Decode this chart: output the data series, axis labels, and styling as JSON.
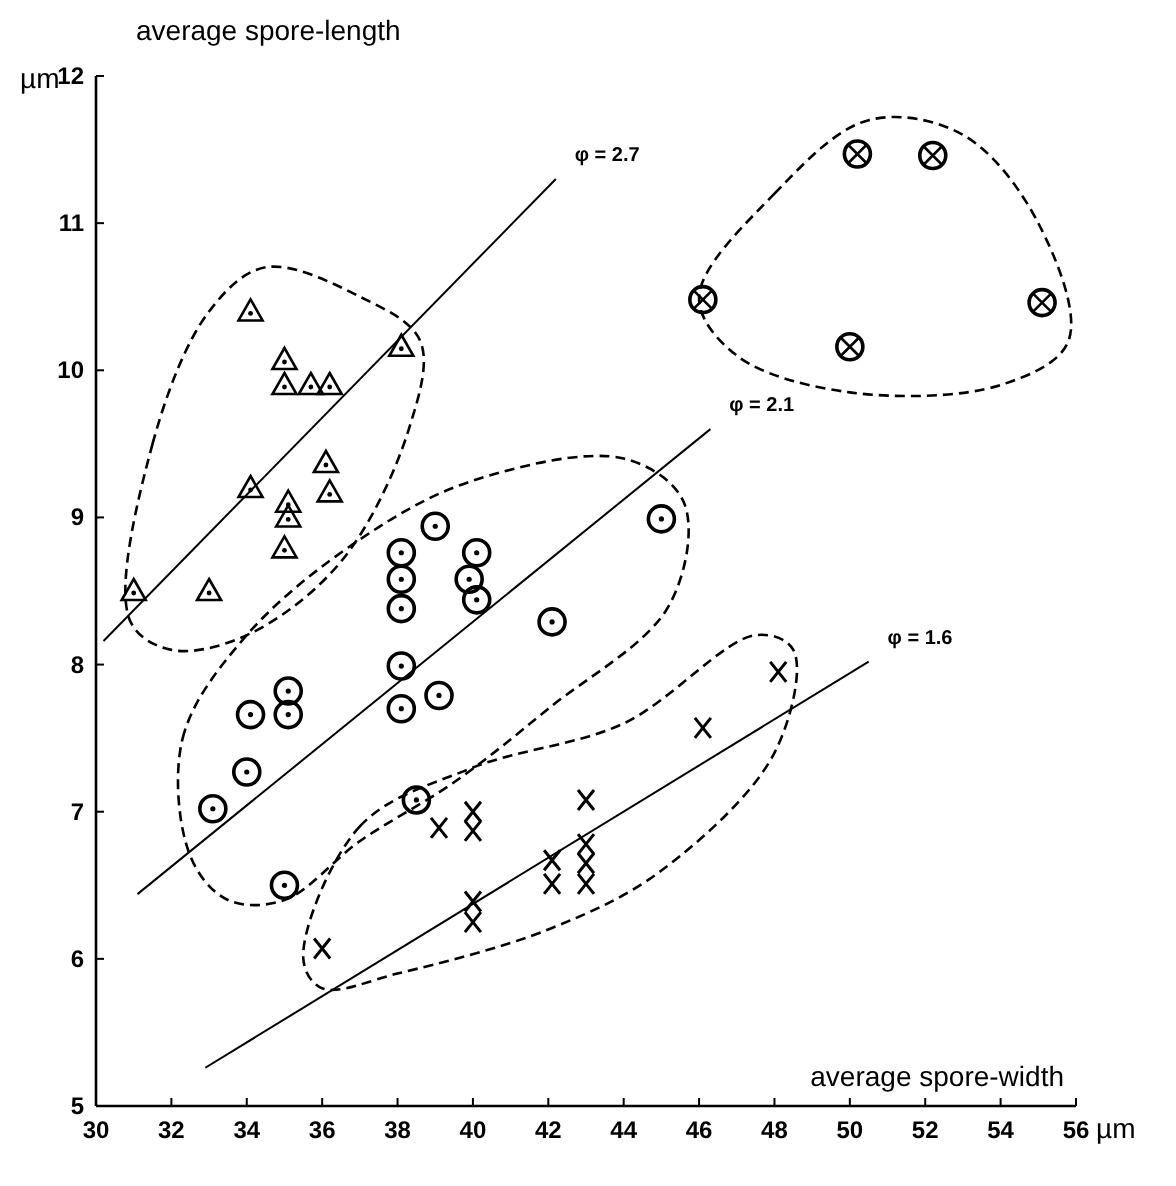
{
  "chart_data": {
    "type": "scatter",
    "xlabel": "average spore-width",
    "ylabel": "average spore-length",
    "xlim": [
      30,
      56
    ],
    "ylim": [
      5,
      12
    ],
    "xticks": [
      30,
      32,
      34,
      36,
      38,
      40,
      42,
      44,
      46,
      48,
      50,
      52,
      54,
      56
    ],
    "yticks": [
      5,
      6,
      7,
      8,
      9,
      10,
      11,
      12
    ],
    "series": [
      {
        "color": "#000000",
        "marker": "triangle",
        "x": [
          31,
          33,
          34.1,
          34.1,
          35,
          35,
          35.7,
          36.2,
          36.1,
          36.2,
          35.1,
          35.1,
          35,
          38.1
        ],
        "values": [
          8.5,
          8.5,
          10.4,
          9.2,
          10.07,
          9.9,
          9.9,
          9.9,
          9.37,
          9.17,
          9.1,
          9.0,
          8.79,
          10.16
        ]
      },
      {
        "color": "#000000",
        "marker": "circle",
        "x": [
          38.1,
          38.1,
          38.1,
          39,
          40.1,
          39.9,
          40.1,
          42.1,
          45,
          38.1,
          38.1,
          39.1,
          35.1,
          35.1,
          34.1,
          34,
          33.1,
          38.5,
          35
        ],
        "values": [
          8.76,
          8.58,
          8.38,
          8.94,
          8.76,
          8.58,
          8.44,
          8.29,
          8.99,
          7.99,
          7.7,
          7.79,
          7.82,
          7.66,
          7.66,
          7.27,
          7.02,
          7.08,
          6.5
        ]
      },
      {
        "color": "#000000",
        "marker": "cross",
        "x": [
          39.1,
          40,
          40,
          40,
          40,
          42.1,
          42.1,
          43,
          43,
          43,
          43,
          36,
          46.1,
          48.1
        ],
        "values": [
          6.89,
          7.0,
          6.87,
          6.39,
          6.25,
          6.67,
          6.51,
          7.08,
          6.78,
          6.65,
          6.51,
          6.07,
          7.57,
          7.95
        ]
      },
      {
        "color": "#000000",
        "marker": "circle",
        "x": [
          50.2,
          52.2,
          46.1,
          55.1,
          50
        ],
        "values": [
          11.47,
          11.46,
          10.48,
          10.46,
          10.16
        ]
      },
      {
        "type": "line",
        "color": "#000000",
        "x": [
          30.2,
          42.2
        ],
        "values": [
          8.16,
          11.3
        ]
      },
      {
        "type": "line",
        "color": "#000000",
        "x": [
          31.1,
          46.3
        ],
        "values": [
          6.44,
          9.6
        ]
      },
      {
        "type": "line",
        "color": "#000000",
        "x": [
          32.9,
          50.5
        ],
        "values": [
          5.26,
          8.02
        ]
      }
    ],
    "annotations": [
      "φ = 2.7",
      "φ = 2.1",
      "φ = 1.6",
      "µm",
      "µm"
    ]
  }
}
